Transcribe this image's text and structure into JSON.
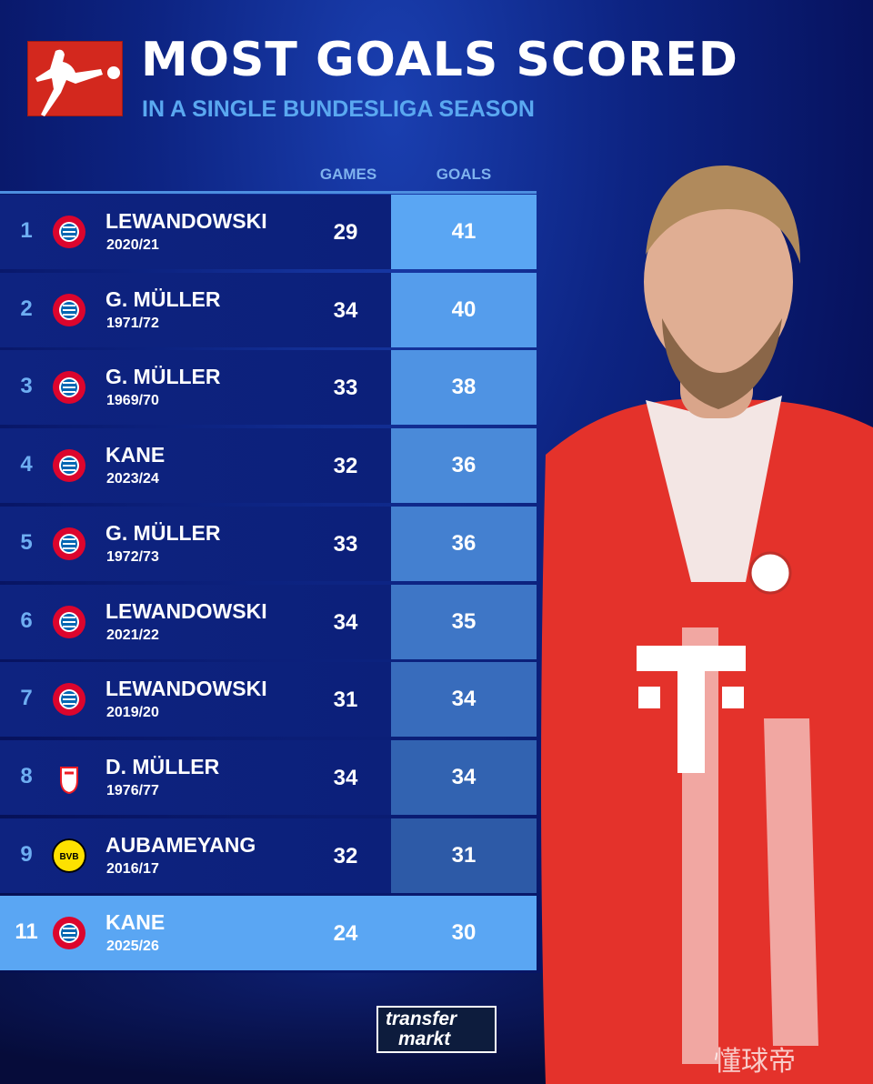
{
  "header": {
    "title": "MOST GOALS SCORED",
    "subtitle": "IN A SINGLE BUNDESLIGA SEASON",
    "logo": "bundesliga-logo"
  },
  "columns": {
    "games": "GAMES",
    "goals": "GOALS"
  },
  "colors": {
    "accent": "#5aa8f0",
    "logo_red": "#d3281e",
    "row": "#0e2380",
    "highlight": "#5aa6f3"
  },
  "chart_data": {
    "type": "table",
    "title": "MOST GOALS SCORED",
    "subtitle": "IN A SINGLE BUNDESLIGA SEASON",
    "columns": [
      "GAMES",
      "GOALS"
    ],
    "rows": [
      {
        "rank": "1",
        "player": "LEWANDOWSKI",
        "season": "2020/21",
        "club": "bayern",
        "games": "29",
        "goals": "41"
      },
      {
        "rank": "2",
        "player": "G. MÜLLER",
        "season": "1971/72",
        "club": "bayern",
        "games": "34",
        "goals": "40"
      },
      {
        "rank": "3",
        "player": "G. MÜLLER",
        "season": "1969/70",
        "club": "bayern",
        "games": "33",
        "goals": "38"
      },
      {
        "rank": "4",
        "player": "KANE",
        "season": "2023/24",
        "club": "bayern",
        "games": "32",
        "goals": "36"
      },
      {
        "rank": "5",
        "player": "G. MÜLLER",
        "season": "1972/73",
        "club": "bayern",
        "games": "33",
        "goals": "36"
      },
      {
        "rank": "6",
        "player": "LEWANDOWSKI",
        "season": "2021/22",
        "club": "bayern",
        "games": "34",
        "goals": "35"
      },
      {
        "rank": "7",
        "player": "LEWANDOWSKI",
        "season": "2019/20",
        "club": "bayern",
        "games": "31",
        "goals": "34"
      },
      {
        "rank": "8",
        "player": "D. MÜLLER",
        "season": "1976/77",
        "club": "koeln",
        "games": "34",
        "goals": "34"
      },
      {
        "rank": "9",
        "player": "AUBAMEYANG",
        "season": "2016/17",
        "club": "dortmund",
        "games": "32",
        "goals": "31"
      },
      {
        "rank": "11",
        "player": "KANE",
        "season": "2025/26",
        "club": "bayern",
        "games": "24",
        "goals": "30"
      }
    ]
  },
  "footer": {
    "brand_line1": "transfer",
    "brand_line2": "markt",
    "watermark": "懂球帝"
  }
}
